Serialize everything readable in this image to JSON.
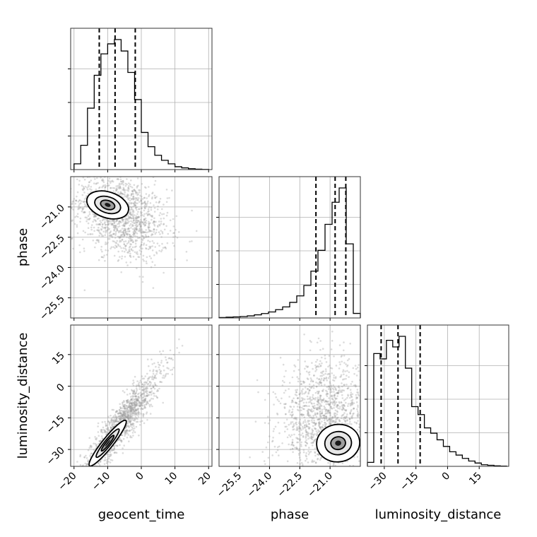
{
  "chart_data": {
    "type": "corner",
    "parameters": [
      "geocent_time",
      "phase",
      "luminosity_distance"
    ],
    "labels": {
      "geocent_time": "geocent_time",
      "phase": "phase",
      "luminosity_distance": "luminosity_distance"
    },
    "ranges": {
      "geocent_time": [
        -21,
        21
      ],
      "phase": [
        -26.5,
        -19.5
      ],
      "luminosity_distance": [
        -38,
        29
      ]
    },
    "ticks": {
      "geocent_time": [
        -20,
        -10,
        0,
        10,
        20
      ],
      "phase": [
        -25.5,
        -24.0,
        -22.5,
        -21.0
      ],
      "luminosity_distance": [
        -30,
        -15,
        0,
        15
      ]
    },
    "tick_labels": {
      "geocent_time": [
        "−20",
        "−10",
        "0",
        "10",
        "20"
      ],
      "phase": [
        "−25.5",
        "−24.0",
        "−22.5",
        "−21.0"
      ],
      "luminosity_distance": [
        "−30",
        "−15",
        "0",
        "15"
      ]
    },
    "marginals": {
      "geocent_time": {
        "bin_edges": [
          -20,
          -18,
          -16,
          -14,
          -12,
          -10,
          -8,
          -6,
          -4,
          -2,
          0,
          2,
          4,
          6,
          8,
          10,
          12,
          14,
          16,
          18,
          20
        ],
        "counts": [
          0.04,
          0.17,
          0.43,
          0.66,
          0.81,
          0.88,
          0.91,
          0.83,
          0.68,
          0.49,
          0.26,
          0.16,
          0.1,
          0.065,
          0.04,
          0.02,
          0.012,
          0.006,
          0.003,
          0.001
        ],
        "quantiles": [
          -12.5,
          -7.8,
          -1.8
        ]
      },
      "phase": {
        "bin_edges": [
          -26.5,
          -26.15,
          -25.8,
          -25.45,
          -25.1,
          -24.75,
          -24.4,
          -24.05,
          -23.7,
          -23.35,
          -23.0,
          -22.65,
          -22.3,
          -21.95,
          -21.6,
          -21.25,
          -20.9,
          -20.55,
          -20.2,
          -19.85,
          -19.5
        ],
        "counts": [
          0.003,
          0.006,
          0.008,
          0.011,
          0.016,
          0.024,
          0.034,
          0.046,
          0.064,
          0.085,
          0.12,
          0.17,
          0.25,
          0.36,
          0.52,
          0.72,
          0.89,
          1.0,
          0.57,
          0.035
        ],
        "quantiles": [
          -21.7,
          -20.75,
          -20.22
        ]
      },
      "luminosity_distance": {
        "bin_edges": [
          -38,
          -35,
          -32,
          -29,
          -26,
          -23,
          -20,
          -17,
          -14,
          -11,
          -8,
          -5,
          -2,
          1,
          4,
          7,
          10,
          13,
          16,
          19,
          22,
          25,
          28
        ],
        "counts": [
          0.03,
          0.85,
          0.81,
          0.95,
          0.9,
          0.98,
          0.74,
          0.45,
          0.39,
          0.29,
          0.25,
          0.2,
          0.15,
          0.11,
          0.085,
          0.06,
          0.04,
          0.025,
          0.012,
          0.008,
          0.004,
          0.002
        ],
        "quantiles": [
          -31.5,
          -23.5,
          -13
        ]
      }
    },
    "joint": [
      {
        "x": "geocent_time",
        "y": "phase",
        "samples": {
          "center": [
            -6,
            -21.4
          ],
          "sd": [
            7,
            1.1
          ],
          "corr": -0.35,
          "count": 1400
        },
        "density_peak": [
          -10,
          -20.9
        ]
      },
      {
        "x": "geocent_time",
        "y": "luminosity_distance",
        "samples": {
          "center": [
            -6,
            -18
          ],
          "sd": [
            6,
            13
          ],
          "corr": 0.92,
          "count": 1400
        },
        "density_peak": [
          -10,
          -27
        ]
      },
      {
        "x": "phase",
        "y": "luminosity_distance",
        "samples": {
          "center": [
            -21.3,
            -16
          ],
          "sd": [
            1.1,
            14
          ],
          "corr": 0.1,
          "count": 1400
        },
        "density_peak": [
          -20.6,
          -27
        ]
      }
    ]
  }
}
